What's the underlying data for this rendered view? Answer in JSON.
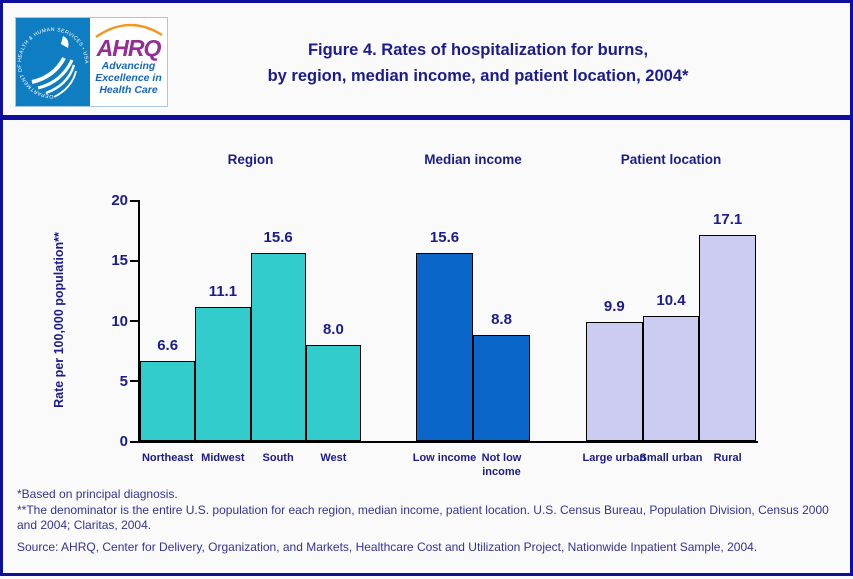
{
  "header": {
    "logo": {
      "hhs_seal_text": "DEPARTMENT OF HEALTH & HUMAN SERVICES • USA",
      "ahrq_acronym": "AHRQ",
      "tagline_line1": "Advancing",
      "tagline_line2": "Excellence in",
      "tagline_line3": "Health Care"
    },
    "title_line1": "Figure 4. Rates of hospitalization for burns,",
    "title_line2": "by region, median income, and patient location, 2004*"
  },
  "chart_data": {
    "type": "bar",
    "title": "Figure 4. Rates of hospitalization for burns, by region, median income, and patient location, 2004*",
    "ylabel": "Rate per 100,000 population**",
    "xlabel": "",
    "ylim": [
      0,
      20
    ],
    "yticks": [
      0,
      5,
      10,
      15,
      20
    ],
    "grid": false,
    "legend_position": "none",
    "groups": [
      {
        "label": "Region",
        "bar_color": "#33cccc",
        "categories": [
          "Northeast",
          "Midwest",
          "South",
          "West"
        ],
        "values": [
          6.6,
          11.1,
          15.6,
          8.0
        ]
      },
      {
        "label": "Median income",
        "bar_color": "#0a66c8",
        "categories": [
          "Low income",
          "Not low income"
        ],
        "values": [
          15.6,
          8.8
        ]
      },
      {
        "label": "Patient location",
        "bar_color": "#ccccf2",
        "categories": [
          "Large urban",
          "Small urban",
          "Rural"
        ],
        "values": [
          9.9,
          10.4,
          17.1
        ]
      }
    ]
  },
  "footnotes": {
    "note1": "*Based on principal diagnosis.",
    "note2": "**The denominator is the entire U.S. population for each region, median income, patient location. U.S. Census Bureau, Population Division, Census 2000 and 2004; Claritas, 2004.",
    "source": "Source: AHRQ, Center for Delivery, Organization, and Markets, Healthcare Cost and Utilization Project, Nationwide Inpatient Sample, 2004."
  },
  "colors": {
    "navy_text": "#1b1b8f",
    "footnote_text": "#333399",
    "frame_border": "#0f0f9f",
    "bar_border": "#000000",
    "region_teal": "#33cccc",
    "income_blue": "#0a66c8",
    "location_lavender": "#ccccf2",
    "hhs_blue": "#0f7dc2",
    "ahrq_purple": "#942d94",
    "tagline_blue": "#1565c0",
    "arc_orange": "#f7941e"
  }
}
